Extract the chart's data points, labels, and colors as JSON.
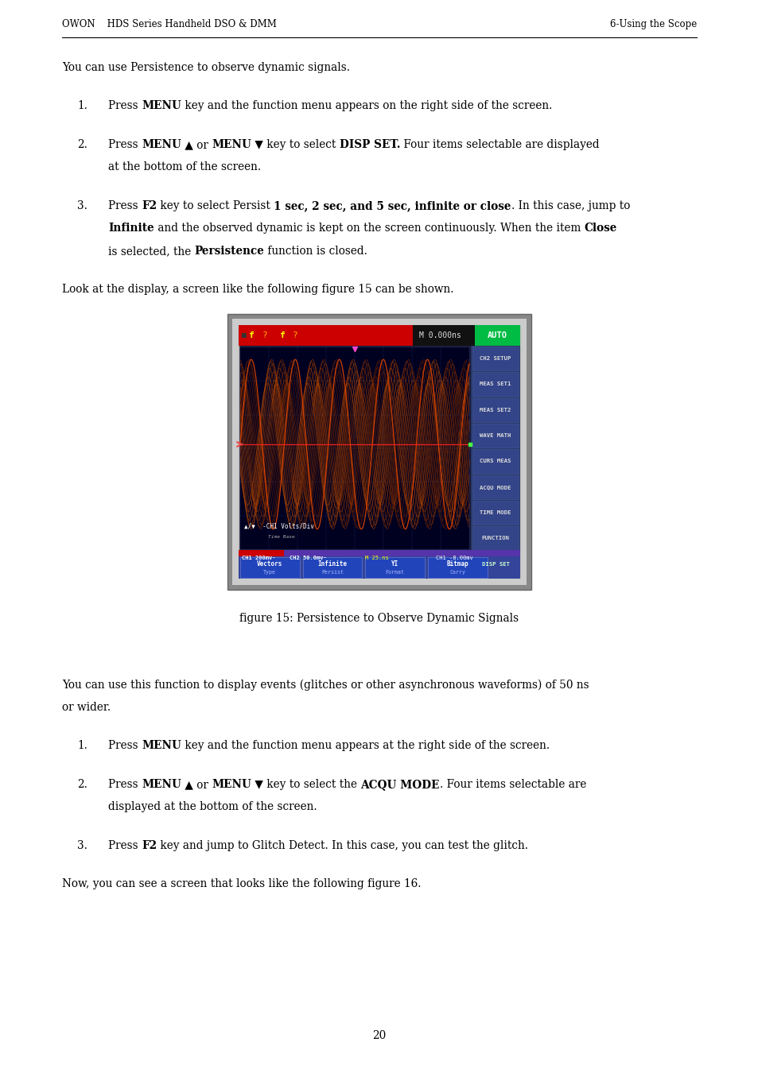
{
  "page_width": 9.54,
  "page_height": 13.5,
  "bg_color": "#ffffff",
  "header_left": "OWON    HDS Series Handheld DSO & DMM",
  "header_right": "6-Using the Scope",
  "footer_text": "20",
  "section1_intro": "You can use Persistence to observe dynamic signals.",
  "before_fig_text": "Look at the display, a screen like the following figure 15 can be shown.",
  "fig_caption": "figure 15: Persistence to Observe Dynamic Signals",
  "section2_line1": "You can use this function to display events (glitches or other asynchronous waveforms) of 50 ns",
  "section2_line2": "or wider.",
  "after_list2_text": "Now, you can see a screen that looks like the following figure 16."
}
